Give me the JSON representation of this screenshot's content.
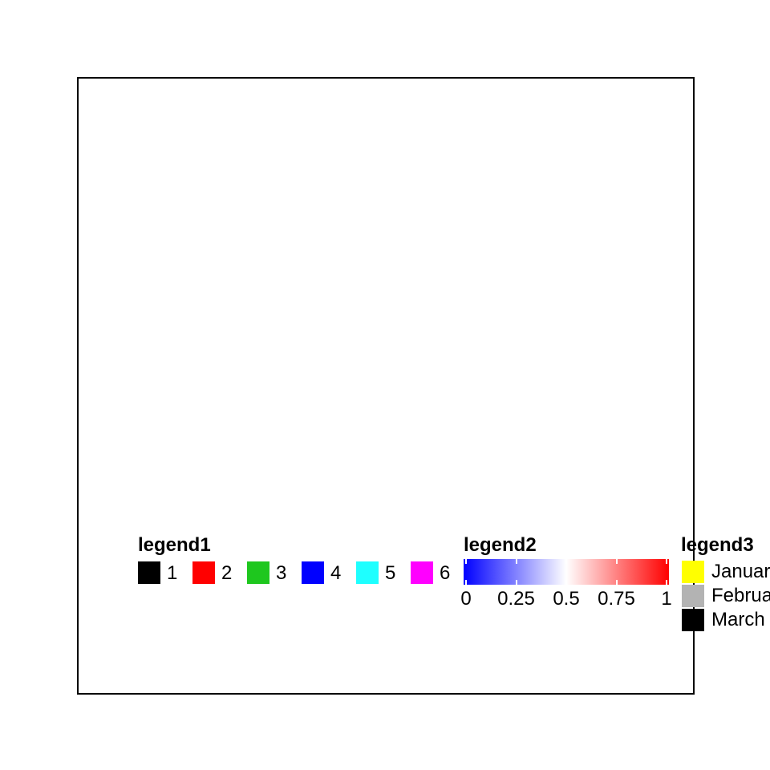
{
  "chart_data": {
    "type": "legend",
    "legends": [
      {
        "title": "legend1",
        "kind": "discrete",
        "items": [
          {
            "label": "1",
            "color": "#000000"
          },
          {
            "label": "2",
            "color": "#ff0000"
          },
          {
            "label": "3",
            "color": "#1ec71e"
          },
          {
            "label": "4",
            "color": "#0000ff"
          },
          {
            "label": "5",
            "color": "#1effff"
          },
          {
            "label": "6",
            "color": "#ff00ff"
          }
        ]
      },
      {
        "title": "legend2",
        "kind": "continuous",
        "range": [
          0,
          1
        ],
        "breaks": [
          0,
          0.25,
          0.5,
          0.75,
          1
        ],
        "tick_labels": [
          "0",
          "0.25",
          "0.5",
          "0.75",
          "1"
        ],
        "colors": [
          "#0000ff",
          "#ffffff",
          "#ff0000"
        ]
      },
      {
        "title": "legend3",
        "kind": "discrete",
        "items": [
          {
            "label": "January",
            "color": "#ffff00"
          },
          {
            "label": "February",
            "color": "#b3b3b3"
          },
          {
            "label": "March",
            "color": "#000000"
          }
        ]
      }
    ]
  }
}
